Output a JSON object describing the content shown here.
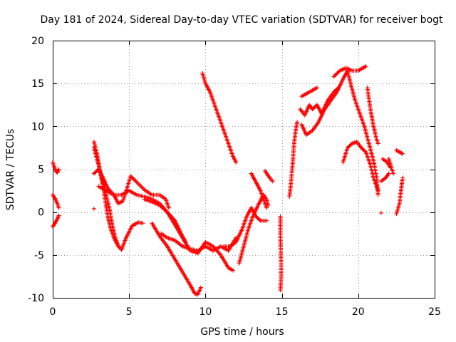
{
  "chart_data": {
    "type": "scatter",
    "title": "Day 181 of 2024, Sidereal Day-to-day VTEC variation (SDTVAR) for receiver bogt",
    "xlabel": "GPS time / hours",
    "ylabel": "SDTVAR / TECUs",
    "xlim": [
      0,
      25
    ],
    "ylim": [
      -10,
      20
    ],
    "xticks": [
      "0",
      "5",
      "10",
      "15",
      "20",
      "25"
    ],
    "yticks": [
      "-10",
      "-5",
      "0",
      "5",
      "10",
      "15",
      "20"
    ],
    "grid": true,
    "marker": "+",
    "color": "#ff0000",
    "series": [
      {
        "name": "seg-a",
        "points": [
          [
            0.0,
            5.8
          ],
          [
            0.1,
            5.3
          ],
          [
            0.2,
            4.8
          ],
          [
            0.3,
            4.6
          ],
          [
            0.4,
            5.0
          ]
        ]
      },
      {
        "name": "seg-b",
        "points": [
          [
            0.0,
            2.0
          ],
          [
            0.15,
            1.6
          ],
          [
            0.3,
            1.0
          ],
          [
            0.4,
            0.5
          ]
        ]
      },
      {
        "name": "seg-c",
        "points": [
          [
            0.0,
            -1.7
          ],
          [
            0.15,
            -1.3
          ],
          [
            0.3,
            -0.8
          ],
          [
            0.4,
            -0.4
          ]
        ]
      },
      {
        "name": "seg-d",
        "points": [
          [
            2.7,
            0.4
          ]
        ]
      },
      {
        "name": "seg-e",
        "points": [
          [
            2.7,
            8.2
          ],
          [
            2.9,
            6.8
          ],
          [
            3.1,
            4.8
          ],
          [
            3.4,
            2.8
          ],
          [
            3.7,
            0.5
          ],
          [
            3.9,
            -1.5
          ],
          [
            4.1,
            -3.0
          ],
          [
            4.3,
            -4.0
          ],
          [
            4.5,
            -4.4
          ],
          [
            4.8,
            -3.0
          ],
          [
            5.2,
            -1.6
          ],
          [
            5.6,
            -1.2
          ],
          [
            5.9,
            -1.3
          ]
        ]
      },
      {
        "name": "seg-f",
        "points": [
          [
            2.7,
            4.5
          ],
          [
            3.0,
            5.0
          ],
          [
            3.3,
            4.0
          ],
          [
            3.6,
            2.8
          ],
          [
            4.0,
            2.0
          ],
          [
            4.3,
            1.0
          ],
          [
            4.6,
            1.3
          ],
          [
            4.9,
            3.0
          ],
          [
            5.1,
            4.2
          ],
          [
            5.5,
            3.5
          ],
          [
            6.0,
            2.6
          ],
          [
            6.5,
            2.0
          ],
          [
            7.0,
            2.0
          ],
          [
            7.4,
            1.5
          ],
          [
            7.6,
            0.5
          ]
        ]
      },
      {
        "name": "seg-g",
        "points": [
          [
            2.7,
            7.5
          ],
          [
            3.0,
            5.5
          ],
          [
            3.3,
            3.0
          ],
          [
            3.6,
            -0.5
          ],
          [
            3.8,
            -2.0
          ],
          [
            4.0,
            -3.0
          ],
          [
            4.3,
            -4.0
          ]
        ]
      },
      {
        "name": "seg-h",
        "points": [
          [
            3.0,
            3.0
          ],
          [
            3.5,
            2.5
          ],
          [
            4.0,
            2.0
          ],
          [
            4.5,
            2.0
          ],
          [
            5.0,
            2.5
          ],
          [
            5.5,
            2.0
          ],
          [
            6.0,
            1.8
          ],
          [
            6.5,
            1.5
          ],
          [
            7.0,
            1.0
          ],
          [
            7.5,
            0.0
          ],
          [
            8.0,
            -1.0
          ],
          [
            8.4,
            -2.5
          ],
          [
            8.7,
            -3.5
          ]
        ]
      },
      {
        "name": "seg-i",
        "points": [
          [
            6.0,
            1.5
          ],
          [
            6.5,
            1.2
          ],
          [
            7.0,
            0.8
          ],
          [
            7.5,
            0.0
          ],
          [
            8.0,
            -1.5
          ],
          [
            8.5,
            -3.0
          ],
          [
            9.0,
            -4.5
          ],
          [
            9.5,
            -4.8
          ],
          [
            10.0,
            -3.5
          ],
          [
            10.5,
            -4.0
          ],
          [
            11.0,
            -5.0
          ],
          [
            11.5,
            -6.5
          ],
          [
            11.8,
            -6.8
          ]
        ]
      },
      {
        "name": "seg-j",
        "points": [
          [
            7.1,
            -2.5
          ],
          [
            7.5,
            -3.0
          ],
          [
            8.0,
            -3.3
          ],
          [
            8.5,
            -4.0
          ],
          [
            9.0,
            -4.3
          ],
          [
            9.5,
            -4.5
          ],
          [
            10.0,
            -4.0
          ],
          [
            10.5,
            -4.5
          ],
          [
            11.0,
            -4.0
          ],
          [
            11.5,
            -4.5
          ],
          [
            12.0,
            -3.0
          ]
        ]
      },
      {
        "name": "seg-k",
        "points": [
          [
            6.5,
            -1.3
          ],
          [
            7.0,
            -2.8
          ],
          [
            7.5,
            -4.0
          ],
          [
            8.0,
            -5.5
          ],
          [
            8.5,
            -7.0
          ],
          [
            9.0,
            -8.5
          ],
          [
            9.3,
            -9.5
          ],
          [
            9.5,
            -9.6
          ],
          [
            9.7,
            -8.8
          ]
        ]
      },
      {
        "name": "seg-l",
        "points": [
          [
            9.8,
            16.2
          ],
          [
            10.0,
            15.0
          ],
          [
            10.3,
            14.0
          ],
          [
            10.6,
            12.5
          ],
          [
            10.9,
            11.0
          ],
          [
            11.2,
            9.5
          ],
          [
            11.5,
            8.0
          ],
          [
            11.8,
            6.5
          ],
          [
            12.0,
            5.8
          ]
        ]
      },
      {
        "name": "seg-m",
        "points": [
          [
            11.2,
            -4.0
          ],
          [
            11.6,
            -4.0
          ],
          [
            12.0,
            -3.5
          ],
          [
            12.4,
            -2.0
          ],
          [
            12.7,
            -0.5
          ],
          [
            13.0,
            0.5
          ],
          [
            13.3,
            -0.5
          ],
          [
            13.6,
            -1.0
          ],
          [
            14.0,
            -1.0
          ]
        ]
      },
      {
        "name": "seg-n",
        "points": [
          [
            12.2,
            -6.0
          ],
          [
            12.5,
            -4.0
          ],
          [
            12.8,
            -2.0
          ],
          [
            13.1,
            -0.5
          ],
          [
            13.5,
            1.0
          ],
          [
            13.8,
            2.0
          ],
          [
            14.0,
            1.5
          ],
          [
            14.1,
            0.8
          ]
        ]
      },
      {
        "name": "seg-o",
        "points": [
          [
            13.0,
            4.5
          ],
          [
            13.3,
            3.5
          ],
          [
            13.6,
            2.5
          ],
          [
            14.0,
            0.5
          ]
        ]
      },
      {
        "name": "seg-p",
        "points": [
          [
            13.9,
            4.8
          ],
          [
            14.2,
            4.0
          ],
          [
            14.4,
            3.6
          ]
        ]
      },
      {
        "name": "seg-q",
        "points": [
          [
            14.9,
            -0.5
          ],
          [
            14.9,
            -2.8
          ],
          [
            14.95,
            -6.0
          ],
          [
            14.95,
            -7.6
          ],
          [
            14.9,
            -9.1
          ]
        ]
      },
      {
        "name": "seg-r",
        "points": [
          [
            15.5,
            1.8
          ],
          [
            15.6,
            3.5
          ],
          [
            15.7,
            5.5
          ],
          [
            15.8,
            8.0
          ],
          [
            15.9,
            9.5
          ],
          [
            16.0,
            10.5
          ]
        ]
      },
      {
        "name": "seg-s",
        "points": [
          [
            16.2,
            12.0
          ],
          [
            16.5,
            11.3
          ],
          [
            16.8,
            12.5
          ],
          [
            17.0,
            12.0
          ],
          [
            17.3,
            12.5
          ],
          [
            17.6,
            11.5
          ],
          [
            18.0,
            13.0
          ],
          [
            18.4,
            14.0
          ],
          [
            18.7,
            14.5
          ]
        ]
      },
      {
        "name": "seg-t",
        "points": [
          [
            16.3,
            13.5
          ],
          [
            16.6,
            13.8
          ],
          [
            17.0,
            14.2
          ],
          [
            17.3,
            14.5
          ]
        ]
      },
      {
        "name": "seg-u",
        "points": [
          [
            16.3,
            10.2
          ],
          [
            16.6,
            9.0
          ],
          [
            17.0,
            9.5
          ],
          [
            17.4,
            10.5
          ],
          [
            17.8,
            12.0
          ],
          [
            18.2,
            13.0
          ],
          [
            18.6,
            14.0
          ],
          [
            19.0,
            15.5
          ],
          [
            19.3,
            16.5
          ],
          [
            19.5,
            15.0
          ],
          [
            19.8,
            13.0
          ],
          [
            20.1,
            11.5
          ],
          [
            20.4,
            10.0
          ],
          [
            20.7,
            8.0
          ],
          [
            21.0,
            6.0
          ],
          [
            21.2,
            4.0
          ],
          [
            21.3,
            2.0
          ]
        ]
      },
      {
        "name": "seg-v",
        "points": [
          [
            18.4,
            15.8
          ],
          [
            18.8,
            16.5
          ],
          [
            19.2,
            16.8
          ],
          [
            19.6,
            16.5
          ],
          [
            20.0,
            16.5
          ],
          [
            20.3,
            16.8
          ],
          [
            20.5,
            17.0
          ]
        ]
      },
      {
        "name": "seg-w",
        "points": [
          [
            19.0,
            5.8
          ],
          [
            19.3,
            7.5
          ],
          [
            19.6,
            8.0
          ],
          [
            19.9,
            8.2
          ],
          [
            20.2,
            7.5
          ],
          [
            20.5,
            7.0
          ],
          [
            20.8,
            5.5
          ],
          [
            21.0,
            4.0
          ],
          [
            21.3,
            2.5
          ]
        ]
      },
      {
        "name": "seg-x",
        "points": [
          [
            20.6,
            14.5
          ],
          [
            20.8,
            12.0
          ],
          [
            21.0,
            10.0
          ],
          [
            21.2,
            8.5
          ],
          [
            21.3,
            8.0
          ]
        ]
      },
      {
        "name": "seg-y",
        "points": [
          [
            21.5,
            -0.1
          ]
        ]
      },
      {
        "name": "seg-z",
        "points": [
          [
            21.5,
            3.6
          ],
          [
            21.8,
            4.0
          ],
          [
            22.0,
            4.5
          ]
        ]
      },
      {
        "name": "seg-aa",
        "points": [
          [
            21.6,
            6.2
          ],
          [
            21.9,
            5.8
          ],
          [
            22.1,
            5.2
          ]
        ]
      },
      {
        "name": "seg-ab",
        "points": [
          [
            22.0,
            6.2
          ],
          [
            22.2,
            5.0
          ],
          [
            22.3,
            4.5
          ]
        ]
      },
      {
        "name": "seg-ac",
        "points": [
          [
            22.5,
            7.2
          ],
          [
            22.7,
            7.0
          ],
          [
            22.9,
            6.8
          ]
        ]
      },
      {
        "name": "seg-ad",
        "points": [
          [
            22.5,
            -0.2
          ],
          [
            22.7,
            1.0
          ],
          [
            22.8,
            2.5
          ],
          [
            22.9,
            4.0
          ]
        ]
      }
    ]
  }
}
